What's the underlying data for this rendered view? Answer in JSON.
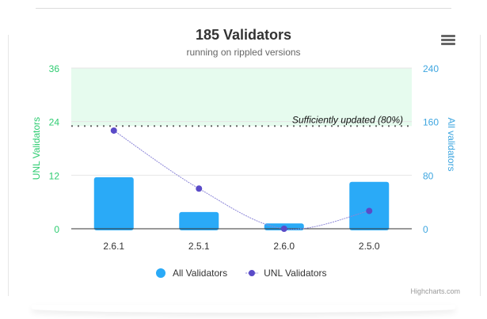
{
  "header": {
    "title": "185 Validators",
    "subtitle": "running on rippled versions",
    "menu_icon": "hamburger-menu-icon"
  },
  "plot_band_label": "Sufficiently updated (80%)",
  "legend": {
    "items": [
      {
        "label": "All Validators",
        "color": "#2aaaf7",
        "symbol": "circle"
      },
      {
        "label": "UNL Validators",
        "color": "#5a4bc8",
        "symbol": "line-dot"
      }
    ]
  },
  "credits": "Highcharts.com",
  "chart_data": {
    "type": "bar",
    "title": "185 Validators",
    "subtitle": "running on rippled versions",
    "categories": [
      "2.6.1",
      "2.5.1",
      "2.6.0",
      "2.5.0"
    ],
    "series": [
      {
        "name": "All Validators",
        "type": "column",
        "axis": "right",
        "color": "#2aaaf7",
        "values": [
          77,
          25,
          8,
          70
        ]
      },
      {
        "name": "UNL Validators",
        "type": "spline",
        "axis": "left",
        "color": "#5a4bc8",
        "values": [
          22,
          9,
          0,
          4
        ]
      }
    ],
    "y_left": {
      "label": "UNL Validators",
      "ticks": [
        "0",
        "12",
        "24",
        "36"
      ],
      "range": [
        0,
        36
      ],
      "color": "#2ecc71"
    },
    "y_right": {
      "label": "All validators",
      "ticks": [
        "0",
        "80",
        "160",
        "240"
      ],
      "range": [
        0,
        240
      ],
      "color": "#3ea6e0"
    },
    "plot_band": {
      "from": 23,
      "to": 36,
      "axis": "left",
      "label": "Sufficiently updated (80%)",
      "color": "#e6fbee"
    },
    "grid": true,
    "legend_position": "bottom"
  }
}
